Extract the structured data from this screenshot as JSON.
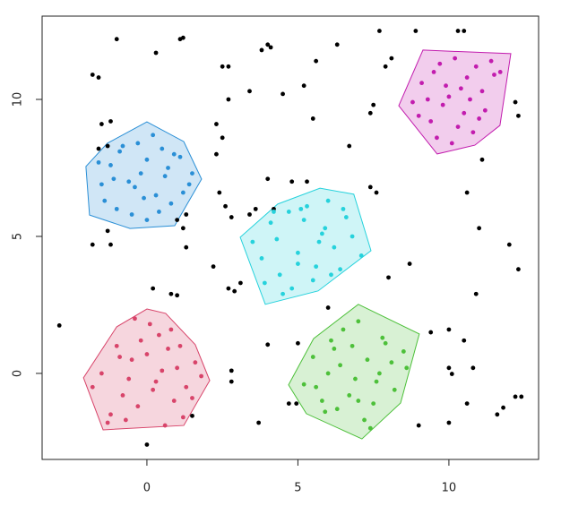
{
  "chart_data": {
    "type": "scatter",
    "xlim": [
      -3.47,
      12.97
    ],
    "ylim": [
      -3.14,
      13.04
    ],
    "xticks": [
      0,
      5,
      10
    ],
    "yticks": [
      0,
      5,
      10
    ],
    "series": [
      {
        "color": "#000000",
        "x": [
          -1,
          0.3,
          1.1,
          1.2,
          -1.8,
          -1.6,
          -1.5,
          -1.2,
          -1.6,
          -1.3,
          -1.2,
          -1.8,
          -1.3,
          1.2,
          1.3,
          1.0,
          1.3,
          2.3,
          2.5,
          2.3,
          2.4,
          2.6,
          2.8,
          2.7,
          2.5,
          2.7,
          3.4,
          3.8,
          4.0,
          4.1,
          4.5,
          5.2,
          5.6,
          6.3,
          5.5,
          6.7,
          7.4,
          7.5,
          7.7,
          7.9,
          8.1,
          8.9,
          10.3,
          10.5,
          11.1,
          10.6,
          11.0,
          12.0,
          12.3,
          12.2,
          12.3,
          10.9,
          10.0,
          10.5,
          9.4,
          8.0,
          8.7,
          9.0,
          10.0,
          10.0,
          10.1,
          10.8,
          10.6,
          11.6,
          11.8,
          12.2,
          12.4,
          -2.9,
          0.2,
          0.8,
          1.0,
          2.2,
          2.7,
          2.9,
          3.1,
          2.8,
          2.8,
          3.7,
          4.0,
          5.0,
          4.7,
          4.95,
          0.0,
          4.0,
          4.8,
          5.3,
          3.6,
          4.2,
          7.4,
          7.6,
          6.0,
          3.4,
          1.5
        ],
        "y": [
          12.2,
          11.7,
          12.2,
          12.25,
          10.9,
          10.8,
          9.1,
          9.2,
          8.2,
          8.3,
          4.7,
          4.7,
          5.2,
          5.3,
          4.6,
          5.6,
          5.8,
          9.1,
          8.6,
          8.0,
          6.6,
          6.1,
          5.7,
          10.0,
          11.2,
          11.2,
          10.3,
          11.8,
          12.0,
          11.9,
          10.2,
          10.5,
          11.4,
          12.0,
          9.3,
          8.3,
          9.5,
          9.8,
          12.5,
          11.2,
          11.5,
          12.5,
          12.5,
          12.5,
          7.8,
          6.6,
          5.3,
          4.7,
          3.8,
          9.9,
          9.4,
          2.9,
          1.6,
          1.2,
          1.5,
          3.5,
          4.0,
          -1.9,
          -1.8,
          0.2,
          -0.02,
          0.2,
          -1.1,
          -1.5,
          -1.25,
          -0.85,
          -0.85,
          1.75,
          3.1,
          2.9,
          2.85,
          3.9,
          3.1,
          3.0,
          3.3,
          0.1,
          -0.3,
          -1.8,
          1.05,
          1.1,
          -1.1,
          -1.1,
          -2.6,
          7.1,
          7.0,
          7.0,
          6.0,
          6.0,
          6.8,
          6.6,
          2.4,
          5.8,
          -1.55
        ]
      },
      {
        "color": "#d8446a",
        "x": [
          -1.2,
          -0.8,
          -0.5,
          -0.2,
          0.1,
          0.4,
          0.7,
          1.0,
          1.3,
          1.6,
          -1.5,
          -1.0,
          -0.6,
          -0.3,
          0.2,
          0.5,
          0.9,
          1.2,
          1.5,
          -1.3,
          -0.9,
          -0.4,
          0.0,
          0.3,
          0.8,
          1.1,
          -0.7,
          0.6,
          -1.8,
          1.8
        ],
        "y": [
          -1.5,
          -0.8,
          0.5,
          1.2,
          1.8,
          1.4,
          0.9,
          0.2,
          -0.5,
          0.4,
          0.0,
          1.0,
          -0.2,
          -1.2,
          -0.6,
          0.1,
          -1.0,
          -1.6,
          -0.9,
          -1.8,
          0.6,
          2.0,
          0.7,
          -0.3,
          1.6,
          1.0,
          -1.7,
          -1.9,
          -0.5,
          -0.1
        ],
        "hull": {
          "x": [
            0,
            0.62,
            1.6,
            2.08,
            1.22,
            -1.45,
            -2.1,
            -1.0
          ],
          "y": [
            2.35,
            2.19,
            1.05,
            -0.26,
            -1.9,
            -2.06,
            -0.16,
            1.7
          ]
        }
      },
      {
        "color": "#2a8fd6",
        "x": [
          -1.5,
          -1.2,
          -0.9,
          -0.6,
          -0.3,
          0,
          0.3,
          0.6,
          0.9,
          1.2,
          1.5,
          -1.4,
          -1.0,
          -0.5,
          -0.1,
          0.4,
          0.8,
          1.1,
          -0.8,
          -0.2,
          0.2,
          0.7,
          -1.6,
          1.4,
          0.0,
          -0.4,
          0.5,
          -1.1
        ],
        "y": [
          6.9,
          7.6,
          8.1,
          7.0,
          8.4,
          7.8,
          6.5,
          7.2,
          8.0,
          6.6,
          7.3,
          6.3,
          6.0,
          5.8,
          6.4,
          5.9,
          6.2,
          7.9,
          8.3,
          7.3,
          8.7,
          7.5,
          7.7,
          6.9,
          5.6,
          6.8,
          8.2,
          7.1
        ],
        "hull": {
          "x": [
            0,
            1.22,
            1.81,
            0.92,
            -0.56,
            -1.9,
            -2.02,
            -1.31
          ],
          "y": [
            9.18,
            8.46,
            7.09,
            5.39,
            5.29,
            5.78,
            7.55,
            8.4
          ]
        }
      },
      {
        "color": "#26d2dc",
        "x": [
          3.5,
          3.8,
          4.1,
          4.4,
          4.7,
          5.0,
          5.3,
          5.6,
          5.9,
          6.2,
          6.5,
          6.8,
          7.1,
          3.9,
          4.3,
          4.8,
          5.2,
          5.7,
          6.1,
          6.6,
          4.5,
          5.0,
          5.5,
          6.0,
          6.4,
          4.2,
          5.8,
          5.1
        ],
        "y": [
          4.8,
          4.2,
          5.5,
          3.6,
          5.9,
          4.4,
          6.1,
          3.9,
          5.3,
          4.6,
          6.0,
          5.0,
          4.3,
          3.3,
          4.9,
          3.1,
          5.6,
          4.8,
          3.6,
          5.7,
          2.9,
          4.0,
          3.4,
          6.3,
          3.8,
          5.9,
          5.1,
          6.0
        ],
        "hull": {
          "x": [
            5.73,
            6.85,
            7.42,
            5.67,
            3.92,
            3.09,
            4.33
          ],
          "y": [
            6.76,
            6.54,
            4.48,
            3.01,
            2.52,
            4.97,
            6.18
          ]
        }
      },
      {
        "color": "#4dc03a",
        "x": [
          5.2,
          5.5,
          5.8,
          6.1,
          6.4,
          6.7,
          7.0,
          7.3,
          7.6,
          7.9,
          8.2,
          8.5,
          5.6,
          6.0,
          6.3,
          6.8,
          7.2,
          7.7,
          8.1,
          6.5,
          6.9,
          7.4,
          7.8,
          6.2,
          7.0,
          8.6,
          5.9,
          7.5
        ],
        "y": [
          -0.4,
          0.6,
          -1.0,
          1.2,
          0.3,
          -0.8,
          1.9,
          0.5,
          -0.3,
          1.1,
          -0.6,
          0.8,
          -0.5,
          0.0,
          -1.3,
          1.0,
          -1.7,
          0.0,
          0.4,
          1.6,
          -0.2,
          -2.0,
          1.3,
          0.9,
          -1.0,
          0.2,
          -1.4,
          -1.1
        ],
        "hull": {
          "x": [
            7.0,
            9.02,
            8.4,
            7.12,
            5.28,
            4.69,
            5.52
          ],
          "y": [
            2.52,
            1.44,
            -1.08,
            -2.39,
            -1.47,
            -0.42,
            1.27
          ]
        }
      },
      {
        "color": "#c21cae",
        "x": [
          8.8,
          9.1,
          9.4,
          9.7,
          10.0,
          10.3,
          10.6,
          10.9,
          11.2,
          11.5,
          9.3,
          9.6,
          9.9,
          10.2,
          10.5,
          10.8,
          11.1,
          11.4,
          9.0,
          9.8,
          10.4,
          11.0,
          11.7,
          9.5,
          10.1,
          10.7
        ],
        "y": [
          9.9,
          10.6,
          9.2,
          11.3,
          10.1,
          9.0,
          10.8,
          11.2,
          9.6,
          10.9,
          10.0,
          8.6,
          10.5,
          11.5,
          9.5,
          8.8,
          10.3,
          11.4,
          9.4,
          9.8,
          10.4,
          9.3,
          11.0,
          11.0,
          8.4,
          10.0
        ],
        "hull": {
          "x": [
            9.14,
            12.05,
            11.69,
            10.86,
            9.61,
            8.34
          ],
          "y": [
            11.8,
            11.67,
            9.05,
            8.33,
            8.01,
            9.77
          ]
        }
      }
    ]
  }
}
